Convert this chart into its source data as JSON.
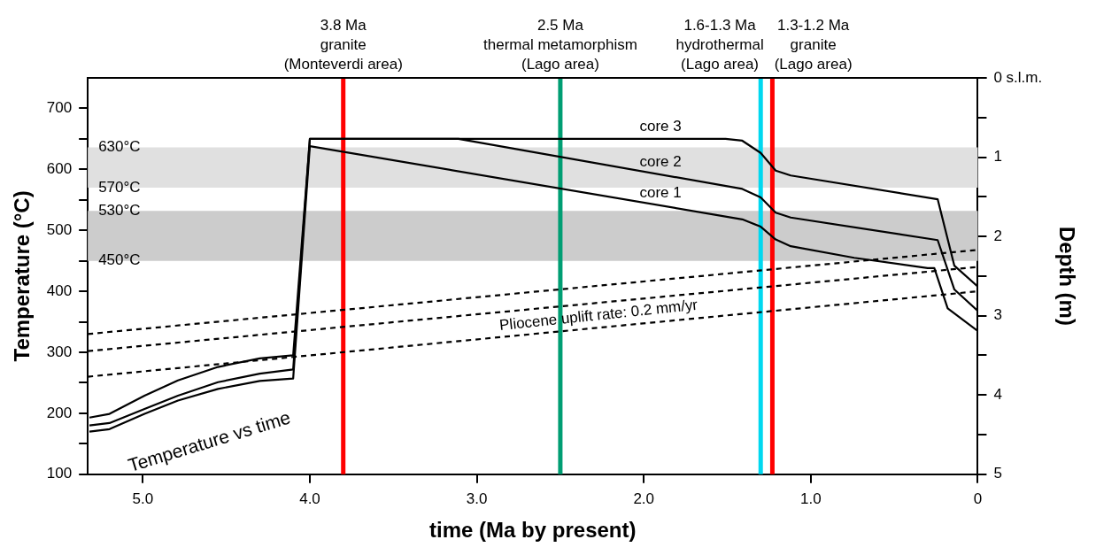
{
  "chart_data": {
    "type": "line",
    "xlabel": "time (Ma by present)",
    "ylabel": "Temperature (°C)",
    "y2label": "Depth (m)",
    "xlim": [
      5.33,
      0
    ],
    "xticks": [
      {
        "value": 5,
        "label": "5.0"
      },
      {
        "value": 4,
        "label": "4.0"
      },
      {
        "value": 3,
        "label": "3.0"
      },
      {
        "value": 2,
        "label": "2.0"
      },
      {
        "value": 1,
        "label": "1.0"
      },
      0
    ],
    "ylim": [
      100,
      750
    ],
    "yticks": [
      100,
      {
        "value": 150,
        "label": null
      },
      200,
      {
        "value": 250,
        "label": null
      },
      300,
      {
        "value": 350,
        "label": null
      },
      400,
      {
        "value": 450,
        "label": null
      },
      500,
      {
        "value": 550,
        "label": null
      },
      600,
      {
        "value": 650,
        "label": null
      },
      700
    ],
    "y2lim": [
      5,
      0
    ],
    "y2ticks": [
      {
        "value": 0,
        "label": "0 s.l.m."
      },
      {
        "value": 0.5,
        "label": null
      },
      1,
      {
        "value": 1.5,
        "label": null
      },
      2,
      {
        "value": 2.5,
        "label": null
      },
      3,
      {
        "value": 3.5,
        "label": null
      },
      4,
      {
        "value": 4.5,
        "label": null
      },
      5
    ],
    "legend": false,
    "marker": "none",
    "series": [
      {
        "name": "core 1",
        "color": "#000000",
        "x": [
          5.32,
          5.2,
          4.99,
          4.79,
          4.55,
          4.3,
          4.1,
          4.0,
          1.41,
          1.3,
          1.21,
          1.12,
          0.74,
          0.3,
          0.26,
          0.18,
          0
        ],
        "values": [
          170,
          174,
          199,
          221,
          240,
          253,
          257,
          638,
          518,
          506,
          485,
          474,
          455,
          438,
          438,
          372,
          335
        ]
      },
      {
        "name": "core 2",
        "color": "#000000",
        "x": [
          5.32,
          5.2,
          4.99,
          4.79,
          4.55,
          4.3,
          4.1,
          4.0,
          3.11,
          1.41,
          1.3,
          1.21,
          1.12,
          0.24,
          0.14,
          0
        ],
        "values": [
          180,
          184,
          207,
          229,
          251,
          265,
          272,
          650,
          650,
          568,
          554,
          529,
          521,
          484,
          403,
          368
        ]
      },
      {
        "name": "core 3",
        "color": "#000000",
        "x": [
          5.32,
          5.2,
          4.99,
          4.79,
          4.55,
          4.3,
          4.1,
          4.0,
          1.51,
          1.41,
          1.3,
          1.21,
          1.12,
          0.24,
          0.14,
          0
        ],
        "values": [
          193,
          199,
          229,
          254,
          276,
          290,
          295,
          650,
          650,
          647,
          627,
          598,
          590,
          551,
          442,
          408
        ]
      },
      {
        "color": "#000000",
        "line_style": "dashed",
        "x": [
          5.33,
          0
        ],
        "values": [
          330,
          468
        ]
      },
      {
        "color": "#000000",
        "line_style": "dashed",
        "x": [
          5.33,
          0
        ],
        "values": [
          302,
          440
        ]
      },
      {
        "color": "#000000",
        "line_style": "dashed",
        "x": [
          5.33,
          0
        ],
        "values": [
          260,
          400
        ]
      }
    ],
    "bands": [
      {
        "axis": "y",
        "from": 570,
        "to": 636,
        "color": "#e0e0e0"
      },
      {
        "axis": "y",
        "from": 450,
        "to": 532,
        "color": "#cccccc"
      }
    ],
    "ref_lines": [
      {
        "axis": "x",
        "value": 3.8,
        "label": "3.8 Ma\ngranite\n(Monteverdi area)",
        "color": "#ff0000"
      },
      {
        "axis": "x",
        "value": 2.5,
        "label": "2.5 Ma\nthermal metamorphism\n(Lago area)",
        "color": "#009e73"
      },
      {
        "axis": "x",
        "value": 1.3,
        "label": "1.6-1.3 Ma\nhydrothermal\n(Lago area)",
        "color": "#00d8f0"
      },
      {
        "axis": "x",
        "value": 1.23,
        "label": "1.3-1.2 Ma\ngranite\n(Lago area)",
        "color": "#ff0000"
      }
    ],
    "annotations": [
      {
        "text": "630°C",
        "y": 636
      },
      {
        "text": "570°C",
        "y": 570
      },
      {
        "text": "530°C",
        "y": 532
      },
      {
        "text": "450°C",
        "y": 450
      },
      "Temperature vs time",
      "Pliocene uplift rate: 0.2 mm/yr"
    ]
  }
}
